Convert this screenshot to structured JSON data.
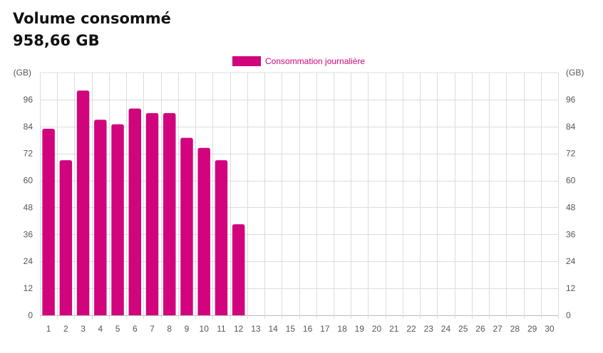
{
  "header": {
    "title": "Volume consommé",
    "total": "958,66 GB"
  },
  "colors": {
    "bar": "#d1047d",
    "grid": "#dcdcdc",
    "tick": "#555555"
  },
  "chart_data": {
    "type": "bar",
    "categories": [
      "1",
      "2",
      "3",
      "4",
      "5",
      "6",
      "7",
      "8",
      "9",
      "10",
      "11",
      "12",
      "13",
      "14",
      "15",
      "16",
      "17",
      "18",
      "19",
      "20",
      "21",
      "22",
      "23",
      "24",
      "25",
      "26",
      "27",
      "28",
      "29",
      "30"
    ],
    "series": [
      {
        "name": "Consommation journalière",
        "values": [
          83,
          69,
          100,
          87,
          85,
          92,
          90,
          90,
          79,
          74.5,
          69,
          40.5,
          0,
          0,
          0,
          0,
          0,
          0,
          0,
          0,
          0,
          0,
          0,
          0,
          0,
          0,
          0,
          0,
          0,
          0
        ]
      }
    ],
    "ylabel_left": "(GB)",
    "ylabel_right": "(GB)",
    "ylim": [
      0,
      108
    ],
    "yticks": [
      "0",
      "12",
      "24",
      "36",
      "48",
      "60",
      "72",
      "84",
      "96"
    ],
    "grid": true,
    "legend_position": "top-center"
  }
}
